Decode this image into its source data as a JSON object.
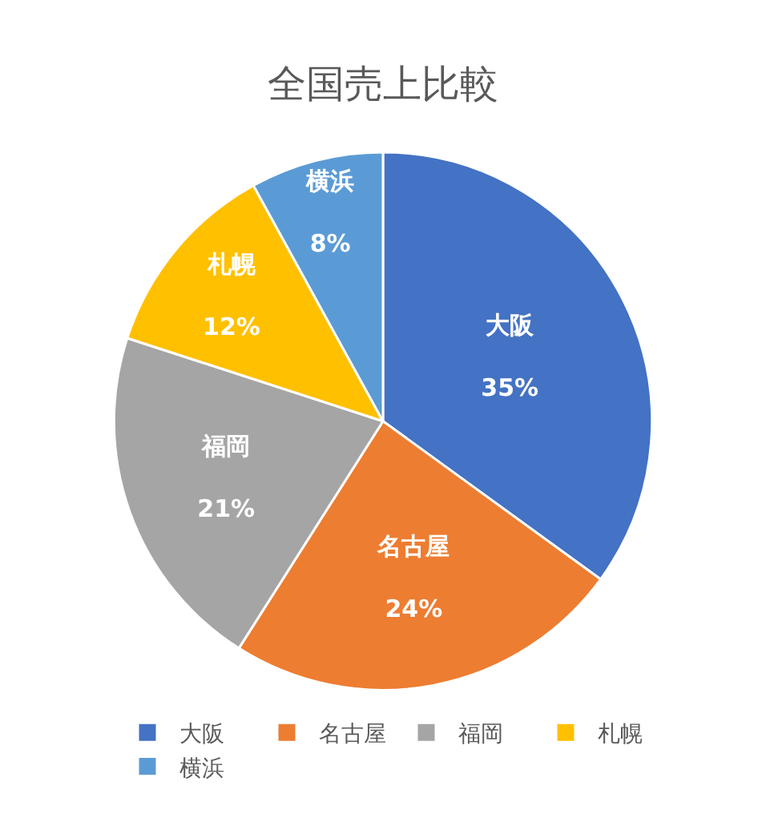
{
  "chart_data": {
    "type": "pie",
    "title": "全国売上比較",
    "categories": [
      "大阪",
      "名古屋",
      "福岡",
      "札幌",
      "横浜"
    ],
    "values": [
      35,
      24,
      21,
      12,
      8
    ],
    "value_labels": [
      "35%",
      "24%",
      "21%",
      "12%",
      "8%"
    ],
    "colors": [
      "#4472c4",
      "#ed7d31",
      "#a5a5a5",
      "#ffc000",
      "#5b9bd5"
    ],
    "legend": "bottom"
  }
}
